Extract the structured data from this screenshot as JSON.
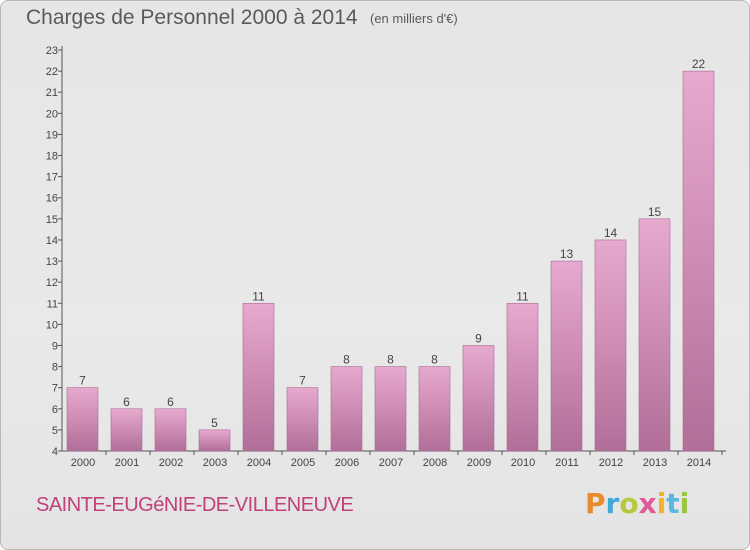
{
  "header": {
    "title": "Charges de Personnel 2000 à 2014",
    "subtitle": "(en milliers d'€)"
  },
  "footer": {
    "commune": "SAINTE-EUGéNIE-DE-VILLENEUVE",
    "logo": "Proxiti"
  },
  "colors": {
    "bar_top": "#e8a9cf",
    "bar_bottom": "#b06f98",
    "bar_stroke": "#a86a91",
    "logo_letters": [
      "#e98a2d",
      "#3fa9d8",
      "#b6c93b",
      "#e05a9a",
      "#f3b12c",
      "#58b8e0",
      "#9bc53d"
    ]
  },
  "chart_data": {
    "type": "bar",
    "title": "Charges de Personnel 2000 à 2014",
    "subtitle": "(en milliers d'€)",
    "categories": [
      "2000",
      "2001",
      "2002",
      "2003",
      "2004",
      "2005",
      "2006",
      "2007",
      "2008",
      "2009",
      "2010",
      "2011",
      "2012",
      "2013",
      "2014"
    ],
    "values": [
      7,
      6,
      6,
      5,
      11,
      7,
      8,
      8,
      8,
      9,
      11,
      13,
      14,
      15,
      22
    ],
    "ylim": [
      4,
      23
    ],
    "yticks": [
      4,
      5,
      6,
      7,
      8,
      9,
      10,
      11,
      12,
      13,
      14,
      15,
      16,
      17,
      18,
      19,
      20,
      21,
      22,
      23
    ],
    "grid": false,
    "legend": "none"
  }
}
